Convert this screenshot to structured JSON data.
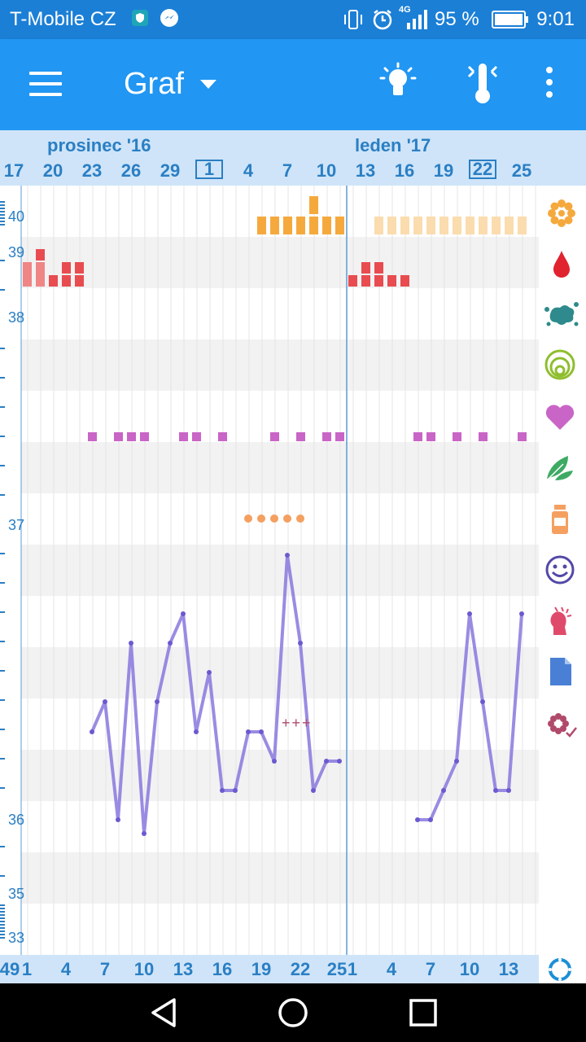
{
  "status_bar": {
    "carrier": "T-Mobile CZ",
    "network": "4G",
    "battery": "95 %",
    "time": "9:01"
  },
  "app_bar": {
    "title": "Graf",
    "actions": [
      "lightbulb-icon",
      "thermometer-icon",
      "overflow-menu-icon"
    ]
  },
  "header": {
    "months": [
      {
        "label": "prosinec '16"
      },
      {
        "label": "leden '17"
      }
    ],
    "days": [
      "17",
      "20",
      "23",
      "26",
      "29",
      "1",
      "4",
      "7",
      "10",
      "13",
      "16",
      "19",
      "22",
      "25"
    ],
    "boxed_days": [
      "1",
      "22"
    ]
  },
  "axis": {
    "labels": [
      "40",
      "39",
      "38",
      "37",
      "36",
      "35",
      "33"
    ]
  },
  "footer": {
    "days": [
      "49",
      "1",
      "4",
      "7",
      "10",
      "13",
      "16",
      "19",
      "22",
      "25",
      "1",
      "4",
      "7",
      "10",
      "13"
    ]
  },
  "markers": {
    "crosses": "+++"
  },
  "side_icons": [
    "flower-icon",
    "drop-icon",
    "splash-icon",
    "cervix-icon",
    "heart-icon",
    "leaf-icon",
    "pill-bottle-icon",
    "smiley-icon",
    "pain-icon",
    "note-icon",
    "flower-check-icon"
  ],
  "refresh_icon": "sync-icon",
  "colors": {
    "status_bar": "#1b7fd6",
    "app_bar": "#2196f3",
    "header_bg": "#cfe4f8",
    "header_text": "#2a7fc4",
    "temperature_line": "#8878de",
    "period": "#e84c50",
    "fertile": "#f5a93d",
    "fertile_light": "#fbdcae",
    "intercourse": "#c965c6"
  }
}
